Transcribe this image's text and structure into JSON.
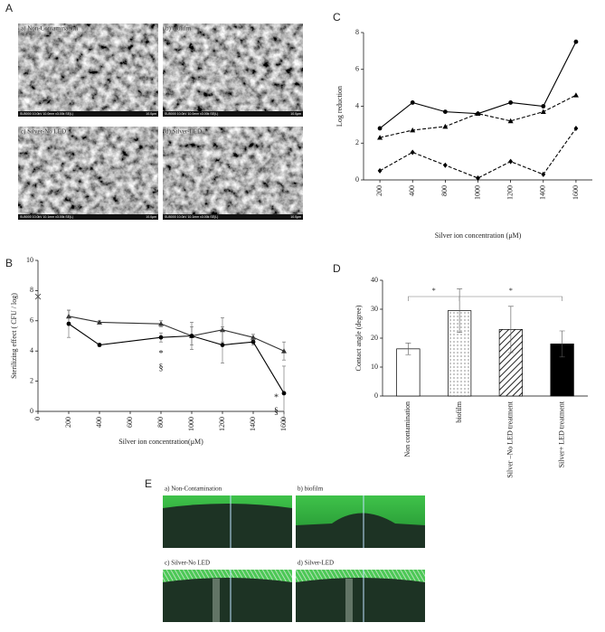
{
  "panel_labels": [
    "A",
    "B",
    "C",
    "D",
    "E"
  ],
  "sem_images": [
    {
      "caption": "a) Non-Contamination",
      "footer": "SU5000 10.0kV 10.0mm x3.00k SE(L)",
      "scale": "10.0μm"
    },
    {
      "caption": "b) biofilm",
      "footer": "SU5000 10.0kV 10.0mm x3.00k SE(L)",
      "scale": "10.0μm"
    },
    {
      "caption": "c) Silver-No LED",
      "footer": "SU5000 10.0kV 10.1mm x3.00k SE(L)",
      "scale": "10.0μm"
    },
    {
      "caption": "d) Silver-LED",
      "footer": "SU5000 10.0kV 10.1mm x3.00k SE(L)",
      "scale": "10.0μm"
    }
  ],
  "contact_images": [
    {
      "caption": "a) Non-Contamination"
    },
    {
      "caption": "b) biofilm"
    },
    {
      "caption": "c) Silver-No LED"
    },
    {
      "caption": "d) Silver-LED"
    }
  ],
  "chart_data": [
    {
      "type": "line",
      "ylabel": "Sterilizing effect ( CFU / log)",
      "xlabel": "Silver ion concentration(μM)",
      "xlim": [
        0,
        1600
      ],
      "xticks": [
        0,
        200,
        400,
        600,
        800,
        1000,
        1200,
        1400,
        1600
      ],
      "ylim": [
        0,
        10
      ],
      "yticks": [
        0,
        2,
        4,
        6,
        8,
        10
      ],
      "series": [
        {
          "color": "#333333",
          "marker": "triangle",
          "line_style": "solid",
          "x": [
            200,
            400,
            800,
            1000,
            1200,
            1400,
            1600
          ],
          "values": [
            6.3,
            5.9,
            5.8,
            5.0,
            5.4,
            4.9,
            4.0
          ],
          "errors": [
            0.4,
            0.1,
            0.2,
            0.9,
            0.8,
            0.2,
            0.6
          ]
        },
        {
          "color": "#000000",
          "marker": "circle",
          "line_style": "solid",
          "x": [
            200,
            400,
            800,
            1000,
            1200,
            1400,
            1600
          ],
          "values": [
            5.8,
            4.4,
            4.9,
            5.0,
            4.4,
            4.6,
            1.2
          ],
          "errors": [
            0.9,
            0.1,
            0.3,
            0.6,
            1.2,
            0.2,
            1.8
          ]
        },
        {
          "color": "#555555",
          "marker": "cross",
          "line_style": "none",
          "x": [
            0
          ],
          "values": [
            7.6
          ]
        }
      ],
      "annotations": [
        {
          "text": "*",
          "x": 800,
          "y": 3.8
        },
        {
          "text": "§",
          "x": 800,
          "y": 2.9
        },
        {
          "text": "*",
          "x": 1400,
          "y": 4.5
        },
        {
          "text": "*",
          "x": 1550,
          "y": 0.9
        },
        {
          "text": "§",
          "x": 1550,
          "y": 0.0
        }
      ]
    },
    {
      "type": "line",
      "ylabel": "Log reduction",
      "xlabel": "Silver ion concentration (μM)",
      "categories": [
        "200",
        "400",
        "800",
        "1000",
        "1200",
        "1400",
        "1600"
      ],
      "ylim": [
        0,
        8
      ],
      "yticks": [
        0,
        2,
        4,
        6,
        8
      ],
      "series": [
        {
          "color": "#000000",
          "marker": "circle",
          "line_style": "solid",
          "values": [
            2.8,
            4.2,
            3.7,
            3.6,
            4.2,
            4.0,
            7.5
          ]
        },
        {
          "color": "#000000",
          "marker": "triangle",
          "line_style": "dashed",
          "values": [
            2.3,
            2.7,
            2.9,
            3.6,
            3.2,
            3.7,
            4.6
          ]
        },
        {
          "color": "#000000",
          "marker": "diamond",
          "line_style": "dashed",
          "values": [
            0.5,
            1.5,
            0.8,
            0.1,
            1.0,
            0.3,
            2.8
          ]
        }
      ]
    },
    {
      "type": "bar",
      "ylabel": "Contact angle (degree)",
      "categories": [
        "Non contamination",
        "biofilm",
        "Silver –No LED treatment",
        "Silver+ LED treatment"
      ],
      "values": [
        16.3,
        29.5,
        23.0,
        18.0
      ],
      "errors": [
        2.0,
        7.5,
        8.0,
        4.5
      ],
      "patterns": [
        "none",
        "dots",
        "hatch",
        "solid"
      ],
      "ylim": [
        0,
        40
      ],
      "yticks": [
        0,
        10,
        20,
        30,
        40
      ],
      "significance": [
        {
          "from": 0,
          "to": 1,
          "label": "*"
        },
        {
          "from": 1,
          "to": 3,
          "label": "*"
        }
      ]
    }
  ]
}
